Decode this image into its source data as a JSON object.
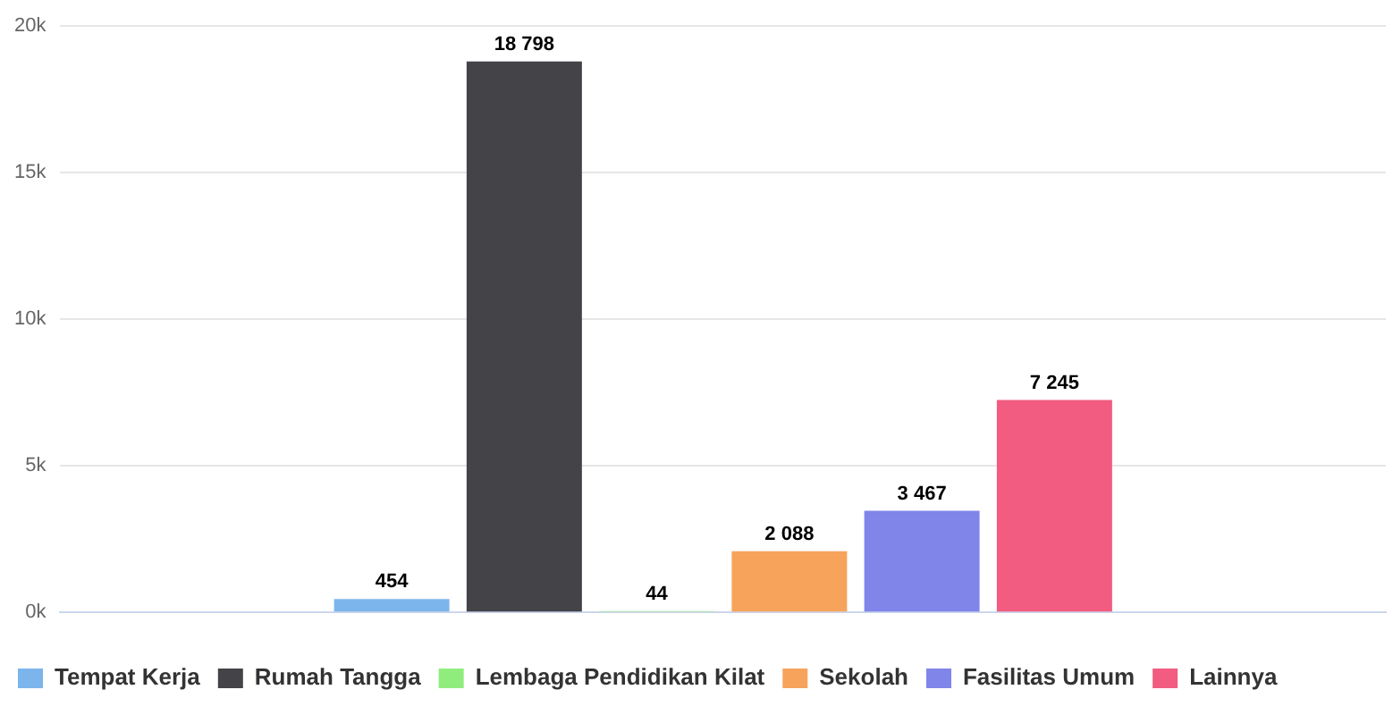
{
  "chart_data": {
    "type": "bar",
    "categories": [
      null
    ],
    "series": [
      {
        "name": "Tempat Kerja",
        "color": "#7cb5ec",
        "values": [
          454
        ],
        "value_labels": [
          "454"
        ]
      },
      {
        "name": "Rumah Tangga",
        "color": "#434348",
        "values": [
          18798
        ],
        "value_labels": [
          "18 798"
        ]
      },
      {
        "name": "Lembaga Pendidikan Kilat",
        "color": "#90ed7d",
        "values": [
          44
        ],
        "value_labels": [
          "44"
        ]
      },
      {
        "name": "Sekolah",
        "color": "#f7a35c",
        "values": [
          2088
        ],
        "value_labels": [
          "2 088"
        ]
      },
      {
        "name": "Fasilitas Umum",
        "color": "#8085e9",
        "values": [
          3467
        ],
        "value_labels": [
          "3 467"
        ]
      },
      {
        "name": "Lainnya",
        "color": "#f15c80",
        "values": [
          7245
        ],
        "value_labels": [
          "7 245"
        ]
      }
    ],
    "ylim": [
      0,
      20000
    ],
    "yticks": [
      {
        "value": 0,
        "label": "0k"
      },
      {
        "value": 5000,
        "label": "5k"
      },
      {
        "value": 10000,
        "label": "10k"
      },
      {
        "value": 15000,
        "label": "15k"
      },
      {
        "value": 20000,
        "label": "20k"
      }
    ],
    "grid": "y",
    "legend": "bottom"
  }
}
